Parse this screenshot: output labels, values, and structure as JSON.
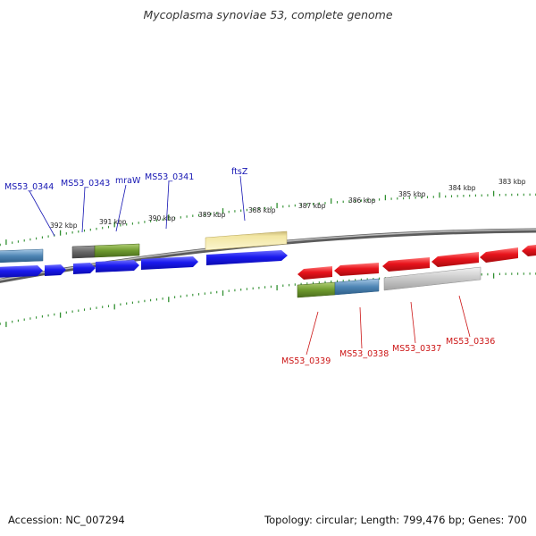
{
  "header": {
    "title": "Mycoplasma synoviae 53, complete genome"
  },
  "footer": {
    "accession": "Accession: NC_007294",
    "stats": "Topology: circular; Length: 799,476 bp; Genes: 700"
  },
  "map": {
    "colors": {
      "forward_gene": "#1a1aee",
      "reverse_gene": "#e8141c",
      "forward_label": "#1515b3",
      "reverse_label": "#cc1515",
      "tick": "#2f8f2f",
      "backbone": "#8a8a8a"
    },
    "kbp_labels": [
      "392 kbp",
      "391 kbp",
      "390 kbp",
      "389 kbp",
      "388 kbp",
      "387 kbp",
      "386 kbp",
      "385 kbp",
      "384 kbp",
      "383 kbp"
    ],
    "forward_labels": [
      "MS53_0344",
      "MS53_0343",
      "mraW",
      "MS53_0341",
      "ftsZ"
    ],
    "reverse_labels": [
      "MS53_0339",
      "MS53_0338",
      "MS53_0337",
      "MS53_0336"
    ]
  }
}
